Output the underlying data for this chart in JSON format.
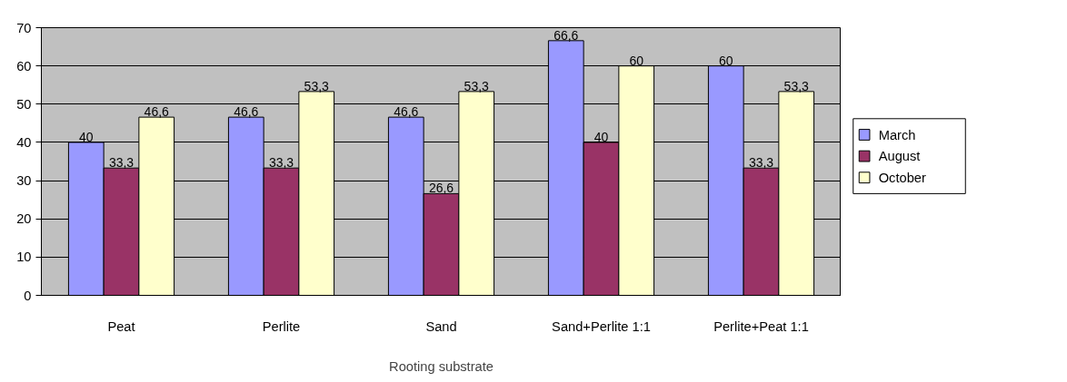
{
  "chart_data": {
    "type": "bar",
    "xlabel": "Rooting substrate",
    "categories": [
      "Peat",
      "Perlite",
      "Sand",
      "Sand+Perlite 1:1",
      "Perlite+Peat 1:1"
    ],
    "series": [
      {
        "name": "March",
        "color": "#9999ff",
        "values": [
          40,
          46.6,
          46.6,
          66.6,
          60
        ],
        "value_labels": [
          "40",
          "46,6",
          "46,6",
          "66,6",
          "60"
        ]
      },
      {
        "name": "August",
        "color": "#993366",
        "values": [
          33.3,
          33.3,
          26.6,
          40,
          33.3
        ],
        "value_labels": [
          "33,3",
          "33,3",
          "26,6",
          "40",
          "33,3"
        ]
      },
      {
        "name": "October",
        "color": "#ffffcc",
        "values": [
          46.6,
          53.3,
          53.3,
          60,
          53.3
        ],
        "value_labels": [
          "46,6",
          "53,3",
          "53,3",
          "60",
          "53,3"
        ]
      }
    ],
    "ylim": [
      0,
      70
    ],
    "yticks": [
      0,
      10,
      20,
      30,
      40,
      50,
      60,
      70
    ],
    "grid": "y",
    "legend": "right"
  }
}
